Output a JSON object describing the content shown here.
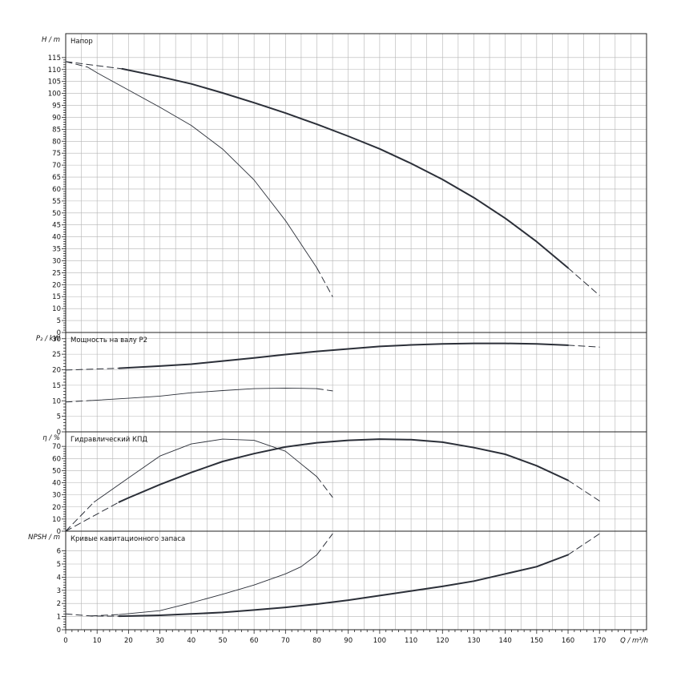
{
  "chart_data": {
    "type": "line",
    "x_axis": {
      "label": "Q / m³/h",
      "min": 0,
      "max": 185,
      "ticks": [
        0,
        10,
        20,
        30,
        40,
        50,
        60,
        70,
        80,
        90,
        100,
        110,
        120,
        130,
        140,
        150,
        160,
        170
      ]
    },
    "panels": [
      {
        "id": "head",
        "title": "Напор",
        "ylabel": "H / m",
        "ylim": [
          0,
          125
        ],
        "ticks": [
          0,
          5,
          10,
          15,
          20,
          25,
          30,
          35,
          40,
          45,
          50,
          55,
          60,
          65,
          70,
          75,
          80,
          85,
          90,
          95,
          100,
          105,
          110,
          115
        ],
        "series": [
          {
            "curve": "max",
            "solid": [
              [
                18,
                110.3
              ],
              [
                30,
                107
              ],
              [
                40,
                104
              ],
              [
                50,
                100.2
              ],
              [
                60,
                96.1
              ],
              [
                70,
                91.8
              ],
              [
                80,
                87.1
              ],
              [
                90,
                82.1
              ],
              [
                100,
                76.8
              ],
              [
                110,
                70.7
              ],
              [
                120,
                64
              ],
              [
                130,
                56.4
              ],
              [
                140,
                47.8
              ],
              [
                150,
                38
              ],
              [
                160,
                27
              ]
            ],
            "dashed": [
              [
                0,
                113.3
              ],
              [
                18,
                110.3
              ]
            ],
            "dashed_end": [
              [
                160,
                27
              ],
              [
                170,
                15.5
              ]
            ]
          },
          {
            "curve": "min",
            "solid": [
              [
                7,
                111
              ],
              [
                10,
                108.6
              ],
              [
                20,
                101.4
              ],
              [
                30,
                94.2
              ],
              [
                40,
                86.6
              ],
              [
                50,
                76.7
              ],
              [
                60,
                63.8
              ],
              [
                70,
                46.8
              ],
              [
                80,
                27
              ]
            ],
            "dashed": [
              [
                0,
                113.3
              ],
              [
                7,
                111
              ]
            ],
            "dashed_end": [
              [
                80,
                27
              ],
              [
                85,
                15
              ]
            ]
          }
        ]
      },
      {
        "id": "power",
        "title": "Мощность на валу P2",
        "ylabel": "P₂ / kW",
        "ylim": [
          0,
          32
        ],
        "ticks": [
          0,
          5,
          10,
          15,
          20,
          25,
          30
        ],
        "series": [
          {
            "curve": "max",
            "solid": [
              [
                17,
                20.5
              ],
              [
                30,
                21.2
              ],
              [
                40,
                21.8
              ],
              [
                50,
                22.8
              ],
              [
                60,
                23.8
              ],
              [
                70,
                24.9
              ],
              [
                80,
                25.9
              ],
              [
                90,
                26.7
              ],
              [
                100,
                27.5
              ],
              [
                110,
                28
              ],
              [
                120,
                28.3
              ],
              [
                130,
                28.5
              ],
              [
                140,
                28.5
              ],
              [
                150,
                28.3
              ],
              [
                160,
                27.9
              ]
            ],
            "dashed": [
              [
                0,
                19.9
              ],
              [
                17,
                20.5
              ]
            ],
            "dashed_end": [
              [
                160,
                27.9
              ],
              [
                170,
                27.3
              ]
            ]
          },
          {
            "curve": "min",
            "solid": [
              [
                8,
                10.1
              ],
              [
                20,
                10.8
              ],
              [
                30,
                11.5
              ],
              [
                40,
                12.6
              ],
              [
                50,
                13.3
              ],
              [
                60,
                13.9
              ],
              [
                70,
                14.1
              ],
              [
                80,
                13.9
              ]
            ],
            "dashed": [
              [
                0,
                9.6
              ],
              [
                8,
                10.1
              ]
            ],
            "dashed_end": [
              [
                80,
                13.9
              ],
              [
                85,
                13.2
              ]
            ]
          }
        ]
      },
      {
        "id": "efficiency",
        "title": "Гидравлический КПД",
        "ylabel": "η / %",
        "ylim": [
          0,
          82
        ],
        "ticks": [
          0,
          10,
          20,
          30,
          40,
          50,
          60,
          70
        ],
        "series": [
          {
            "curve": "max",
            "solid": [
              [
                17,
                24
              ],
              [
                20,
                27.5
              ],
              [
                30,
                38.5
              ],
              [
                40,
                48.5
              ],
              [
                50,
                57.5
              ],
              [
                60,
                64
              ],
              [
                70,
                69.5
              ],
              [
                80,
                73
              ],
              [
                90,
                75
              ],
              [
                100,
                76
              ],
              [
                110,
                75.5
              ],
              [
                120,
                73.5
              ],
              [
                130,
                69
              ],
              [
                140,
                63.5
              ],
              [
                150,
                54
              ],
              [
                160,
                42
              ]
            ],
            "dashed": [
              [
                0,
                0
              ],
              [
                17,
                24
              ]
            ],
            "dashed_end": [
              [
                160,
                42
              ],
              [
                170,
                25
              ]
            ]
          },
          {
            "curve": "min",
            "solid": [
              [
                9,
                24
              ],
              [
                20,
                44
              ],
              [
                30,
                62
              ],
              [
                40,
                72
              ],
              [
                50,
                76
              ],
              [
                60,
                75
              ],
              [
                70,
                66
              ],
              [
                80,
                45
              ]
            ],
            "dashed": [
              [
                0,
                0
              ],
              [
                9,
                24
              ]
            ],
            "dashed_end": [
              [
                80,
                45
              ],
              [
                85,
                28
              ]
            ]
          }
        ]
      },
      {
        "id": "npsh",
        "title": "Кривые кавитационного запаса",
        "ylabel": "NPSH / m",
        "ylim": [
          0,
          7.5
        ],
        "ticks": [
          0,
          1,
          2,
          3,
          4,
          5,
          6
        ],
        "series": [
          {
            "curve": "max",
            "solid": [
              [
                17,
                1.03
              ],
              [
                30,
                1.1
              ],
              [
                40,
                1.2
              ],
              [
                50,
                1.32
              ],
              [
                60,
                1.5
              ],
              [
                70,
                1.7
              ],
              [
                80,
                1.95
              ],
              [
                90,
                2.25
              ],
              [
                100,
                2.6
              ],
              [
                110,
                2.95
              ],
              [
                120,
                3.3
              ],
              [
                130,
                3.7
              ],
              [
                140,
                4.25
              ],
              [
                150,
                4.8
              ],
              [
                160,
                5.7
              ]
            ],
            "dashed": [
              [
                0,
                1.2
              ],
              [
                8,
                1.05
              ],
              [
                17,
                1.03
              ]
            ],
            "dashed_end": [
              [
                160,
                5.7
              ],
              [
                170,
                7.3
              ]
            ]
          },
          {
            "curve": "min",
            "solid": [
              [
                17,
                1.15
              ],
              [
                30,
                1.45
              ],
              [
                40,
                2.05
              ],
              [
                50,
                2.7
              ],
              [
                60,
                3.4
              ],
              [
                70,
                4.25
              ],
              [
                75,
                4.8
              ],
              [
                80,
                5.7
              ]
            ],
            "dashed": [
              [
                8,
                1.05
              ],
              [
                17,
                1.15
              ]
            ],
            "dashed_end": [
              [
                80,
                5.7
              ],
              [
                85,
                7.3
              ]
            ]
          }
        ]
      }
    ]
  }
}
